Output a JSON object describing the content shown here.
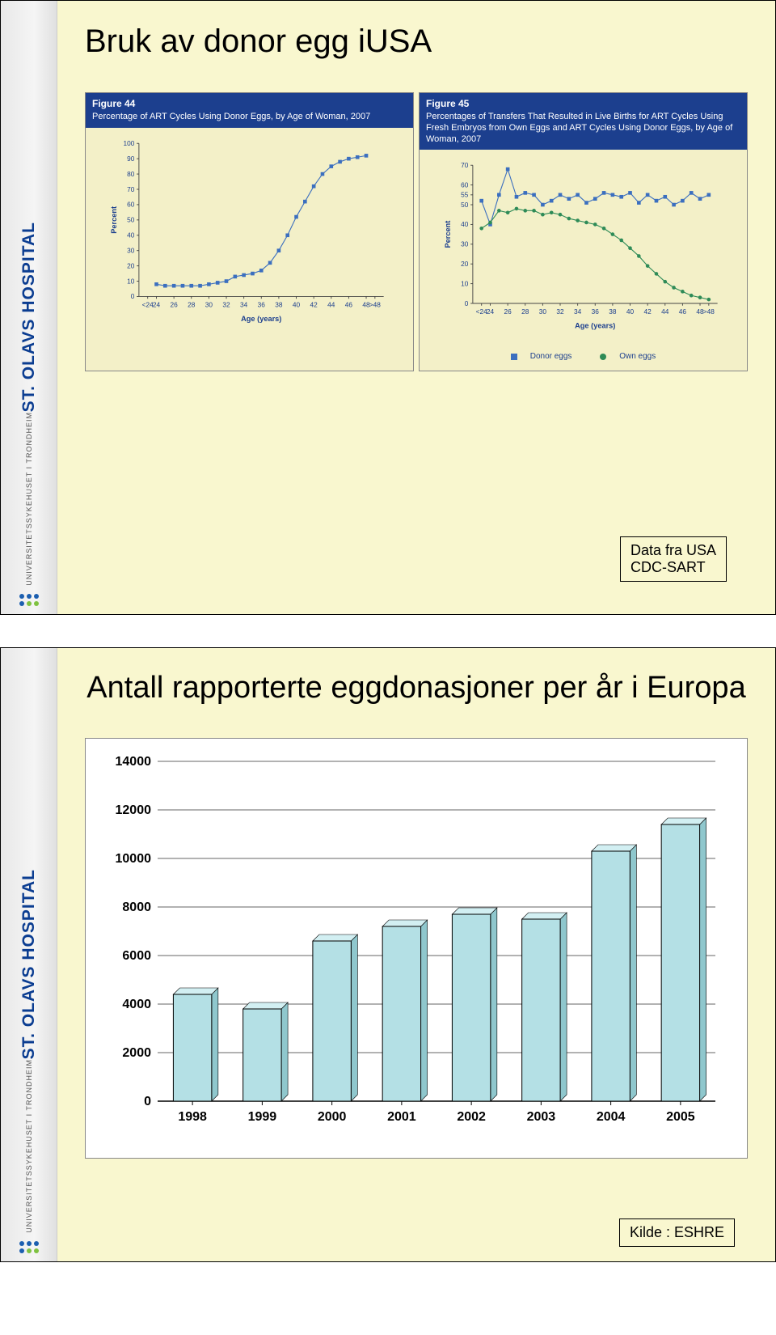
{
  "sidebar": {
    "logo": "ST. OLAVS HOSPITAL",
    "sub": "UNIVERSITETSSYKEHUSET I TRONDHEIM",
    "dot_colors": [
      "#1c5fb0",
      "#1c5fb0",
      "#1c5fb0",
      "#1c5fb0",
      "#7fc241",
      "#7fc241"
    ]
  },
  "slide1": {
    "title": "Bruk av donor egg iUSA",
    "caption": "Data fra USA\nCDC-SART",
    "fig44": {
      "header_bold": "Figure 44",
      "header_text": "Percentage of ART Cycles Using Donor Eggs, by Age of Woman, 2007",
      "y_label": "Percent",
      "x_label": "Age (years)",
      "ylim": [
        0,
        100
      ],
      "ytick_step": 10,
      "x_ticks": [
        "<24",
        "24",
        "26",
        "28",
        "30",
        "32",
        "34",
        "36",
        "38",
        "40",
        "42",
        "44",
        "46",
        "48",
        ">48"
      ],
      "series_color": "#3b6fbf",
      "values": [
        8,
        7,
        7,
        7,
        7,
        7,
        8,
        9,
        10,
        13,
        14,
        15,
        17,
        22,
        30,
        40,
        52,
        62,
        72,
        80,
        85,
        88,
        90,
        91,
        92
      ],
      "x_values": [
        24,
        25,
        26,
        27,
        28,
        29,
        30,
        31,
        32,
        33,
        34,
        35,
        36,
        37,
        38,
        39,
        40,
        41,
        42,
        43,
        44,
        45,
        46,
        47,
        48
      ],
      "x_range": [
        22,
        50
      ]
    },
    "fig45": {
      "header_bold": "Figure 45",
      "header_text": "Percentages of Transfers That Resulted in Live Births for ART Cycles Using Fresh Embryos from Own Eggs and ART Cycles Using Donor Eggs, by Age of Woman, 2007",
      "y_label": "Percent",
      "x_label": "Age (years)",
      "ylim": [
        0,
        70
      ],
      "ytick_step": 10,
      "x_ticks": [
        "<24",
        "24",
        "26",
        "28",
        "30",
        "32",
        "34",
        "36",
        "38",
        "40",
        "42",
        "44",
        "46",
        "48",
        ">48"
      ],
      "legend_donor": "Donor eggs",
      "legend_own": "Own eggs",
      "donor_color": "#3b6fbf",
      "own_color": "#2e8b57",
      "x_values": [
        23,
        24,
        25,
        26,
        27,
        28,
        29,
        30,
        31,
        32,
        33,
        34,
        35,
        36,
        37,
        38,
        39,
        40,
        41,
        42,
        43,
        44,
        45,
        46,
        47,
        48,
        49
      ],
      "donor_values": [
        52,
        40,
        55,
        68,
        54,
        56,
        55,
        50,
        52,
        55,
        53,
        55,
        51,
        53,
        56,
        55,
        54,
        56,
        51,
        55,
        52,
        54,
        50,
        52,
        56,
        53,
        55
      ],
      "own_values": [
        38,
        41,
        47,
        46,
        48,
        47,
        47,
        45,
        46,
        45,
        43,
        42,
        41,
        40,
        38,
        35,
        32,
        28,
        24,
        19,
        15,
        11,
        8,
        6,
        4,
        3,
        2
      ],
      "x_range": [
        22,
        50
      ]
    }
  },
  "slide2": {
    "title": "Antall rapporterte eggdonasjoner per år i Europa",
    "caption": "Kilde : ESHRE",
    "chart": {
      "type": "bar",
      "categories": [
        "1998",
        "1999",
        "2000",
        "2001",
        "2002",
        "2003",
        "2004",
        "2005"
      ],
      "values": [
        4400,
        3800,
        6600,
        7200,
        7700,
        7500,
        10300,
        11400
      ],
      "ylim": [
        0,
        14000
      ],
      "ytick_step": 2000,
      "bar_fill": "#b4e0e5",
      "bar_stroke": "#000000",
      "grid_color": "#333333",
      "background": "#ffffff",
      "bar_width": 0.55,
      "tick_fontsize": 16
    }
  }
}
